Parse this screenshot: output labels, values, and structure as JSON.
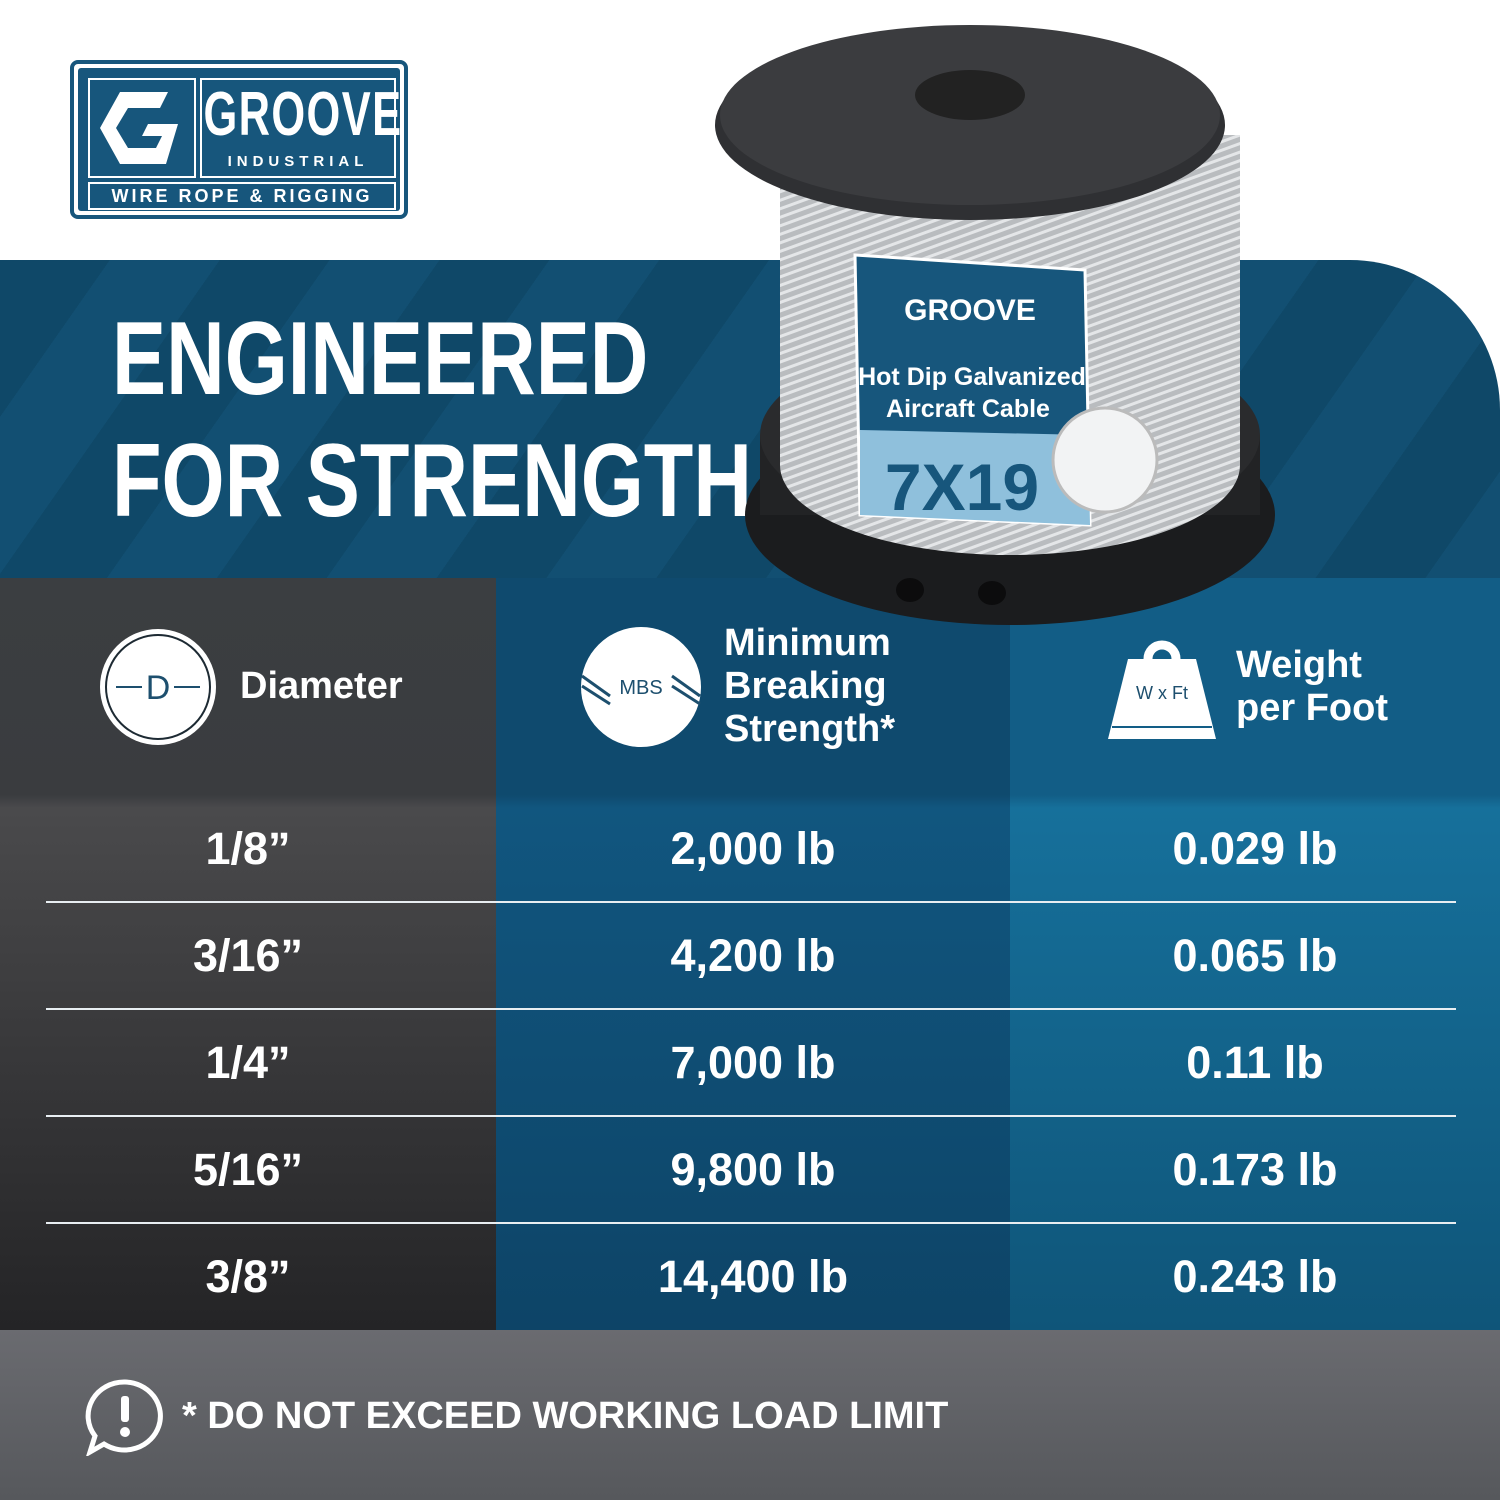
{
  "brand": {
    "name": "GROOVE",
    "sub": "INDUSTRIAL",
    "tagline": "WIRE ROPE & RIGGING"
  },
  "headline": [
    "ENGINEERED",
    "FOR STRENGTH"
  ],
  "product_label": {
    "line1": "Hot Dip Galvanized",
    "line2": "Aircraft Cable",
    "construction": "7X19"
  },
  "colors": {
    "brand_blue": "#17567c",
    "dark_gray": "#3b3e41",
    "mid_blue": "#0f4a6e",
    "light_blue": "#125d86"
  },
  "table": {
    "headers": [
      {
        "icon": "diameter-icon",
        "icon_text": "D",
        "label": "Diameter"
      },
      {
        "icon": "mbs-icon",
        "icon_text": "MBS",
        "label": "Minimum Breaking Strength*"
      },
      {
        "icon": "weight-icon",
        "icon_text": "W x Ft",
        "label": "Weight per Foot"
      }
    ],
    "rows": [
      [
        "1/8”",
        "2,000 lb",
        "0.029 lb"
      ],
      [
        "3/16”",
        "4,200 lb",
        "0.065 lb"
      ],
      [
        "1/4”",
        "7,000 lb",
        "0.11 lb"
      ],
      [
        "5/16”",
        "9,800 lb",
        "0.173 lb"
      ],
      [
        "3/8”",
        "14,400 lb",
        "0.243 lb"
      ]
    ]
  },
  "footer": {
    "icon": "alert-icon",
    "note": "* DO NOT EXCEED WORKING LOAD LIMIT"
  }
}
